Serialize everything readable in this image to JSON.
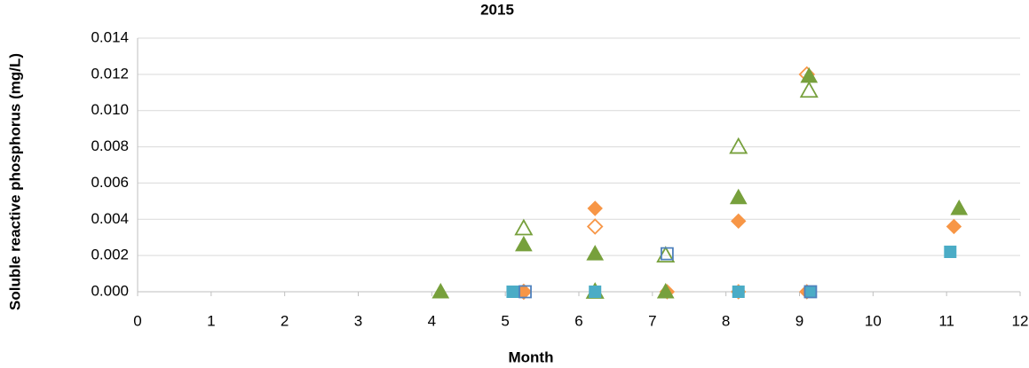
{
  "chart_data": {
    "type": "scatter",
    "title": "2015",
    "xlabel": "Month",
    "ylabel": "Soluble reactive phosphorus (mg/L)",
    "xlim": [
      0,
      12
    ],
    "xticks": [
      0,
      1,
      2,
      3,
      4,
      5,
      6,
      7,
      8,
      9,
      10,
      11,
      12
    ],
    "ylim": [
      0,
      0.014
    ],
    "yticks": [
      {
        "value": 0,
        "label": "0.000"
      },
      {
        "value": 0.002,
        "label": "0.002"
      },
      {
        "value": 0.004,
        "label": "0.004"
      },
      {
        "value": 0.006,
        "label": "0.006"
      },
      {
        "value": 0.008,
        "label": "0.008"
      },
      {
        "value": 0.01,
        "label": "0.010"
      },
      {
        "value": 0.012,
        "label": "0.012"
      },
      {
        "value": 0.014,
        "label": "0.014"
      }
    ],
    "grid": true,
    "series": [
      {
        "color": "#f79646",
        "marker": "diamond",
        "filled": true,
        "x": [
          5.25,
          6.22,
          7.2,
          8.17,
          8.17,
          9.1,
          11.1
        ],
        "values": [
          0,
          0.0046,
          0,
          0.0039,
          0,
          0,
          0.0036
        ]
      },
      {
        "color": "#f79646",
        "marker": "diamond",
        "filled": false,
        "x": [
          5.25,
          6.22,
          9.1
        ],
        "values": [
          0,
          0.0036,
          0.012
        ]
      },
      {
        "color": "#77a03c",
        "marker": "triangle",
        "filled": false,
        "x": [
          5.25,
          6.22,
          7.18,
          8.17,
          9.13
        ],
        "values": [
          0.0035,
          0,
          0.002,
          0.008,
          0.0111
        ]
      },
      {
        "color": "#77a03c",
        "marker": "triangle",
        "filled": true,
        "x": [
          4.12,
          5.25,
          6.22,
          6.22,
          7.18,
          8.17,
          9.13,
          11.17
        ],
        "values": [
          0,
          0.0026,
          0.0021,
          0,
          0,
          0.0052,
          0.0119,
          0.0046
        ]
      },
      {
        "color": "#4bacc6",
        "marker": "square",
        "filled": true,
        "x": [
          5.1,
          6.22,
          8.17,
          9.15,
          11.05
        ],
        "values": [
          0,
          0,
          0,
          0,
          0.0022
        ]
      },
      {
        "color": "#4f81bd",
        "marker": "square",
        "filled": false,
        "x": [
          5.27,
          7.2,
          9.15
        ],
        "values": [
          0,
          0.0021,
          0
        ]
      }
    ]
  }
}
